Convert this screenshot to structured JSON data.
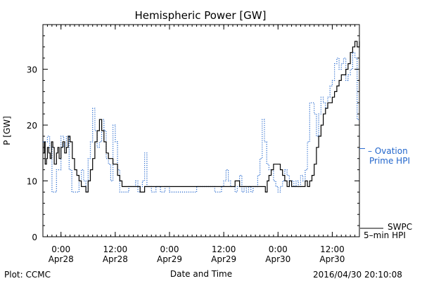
{
  "chart_data": {
    "type": "line",
    "title": "Hemispheric Power [GW]",
    "ylabel": "P [GW]",
    "xlabel": "Date and Time",
    "ylim": [
      0,
      38
    ],
    "xlim_hours": [
      0,
      70
    ],
    "yticks": [
      0,
      10,
      20,
      30
    ],
    "xticks": [
      {
        "x": 4,
        "time": "0:00",
        "date": "Apr28"
      },
      {
        "x": 16,
        "time": "12:00",
        "date": "Apr28"
      },
      {
        "x": 28,
        "time": "0:00",
        "date": "Apr29"
      },
      {
        "x": 40,
        "time": "12:00",
        "date": "Apr29"
      },
      {
        "x": 52,
        "time": "0:00",
        "date": "Apr30"
      },
      {
        "x": 64,
        "time": "12:00",
        "date": "Apr30"
      }
    ],
    "grid": false,
    "series": [
      {
        "name": "SWPC 5-min HPI",
        "legend_lines": [
          "SWPC",
          "5–min HPI"
        ],
        "color": "#000000",
        "style": "solid",
        "x": [
          0,
          0.3,
          0.5,
          0.8,
          1.0,
          1.3,
          1.6,
          1.9,
          2.2,
          2.5,
          3.0,
          3.3,
          3.6,
          4.0,
          4.4,
          4.8,
          5.2,
          5.6,
          6.0,
          6.5,
          7.0,
          7.5,
          8.0,
          8.5,
          9.0,
          9.5,
          10.0,
          10.5,
          11.0,
          11.5,
          12.0,
          12.5,
          13.0,
          13.5,
          14.0,
          14.5,
          15.0,
          15.5,
          16.0,
          16.5,
          17.0,
          17.5,
          18.0,
          18.5,
          19.0,
          19.5,
          20.0,
          20.5,
          21.0,
          21.5,
          22.0,
          22.5,
          23.0,
          23.5,
          24.0,
          26.0,
          28.0,
          30.0,
          32.0,
          34.0,
          36.0,
          38.0,
          40.0,
          42.0,
          42.5,
          43.0,
          43.5,
          44.0,
          46.0,
          48.0,
          49.0,
          49.2,
          49.6,
          50.0,
          50.5,
          51.0,
          51.5,
          52.0,
          52.5,
          53.0,
          53.5,
          54.0,
          54.5,
          55.0,
          55.5,
          56.0,
          56.5,
          57.0,
          57.5,
          58.0,
          58.5,
          59.0,
          59.5,
          60.0,
          60.5,
          61.0,
          61.5,
          62.0,
          62.5,
          63.0,
          63.5,
          64.0,
          64.5,
          65.0,
          65.5,
          66.0,
          66.5,
          67.0,
          67.5,
          68.0,
          68.5,
          69.0,
          69.5,
          70.0
        ],
        "y": [
          15,
          17,
          13,
          14,
          16,
          15,
          14,
          17,
          16,
          13,
          15,
          16,
          14,
          16,
          17,
          15,
          16,
          18,
          17,
          14,
          12,
          11,
          10,
          9,
          9,
          8,
          10,
          12,
          14,
          17,
          19,
          21,
          19,
          17,
          15,
          14,
          14,
          13,
          13,
          11,
          10,
          9,
          9,
          9,
          9,
          9,
          9,
          9,
          9,
          8,
          8,
          9,
          9,
          9,
          9,
          9,
          9,
          9,
          9,
          9,
          9,
          9,
          9,
          9,
          10,
          10,
          9,
          9,
          9,
          9,
          9,
          8,
          10,
          11,
          12,
          13,
          13,
          13,
          12,
          11,
          10,
          9,
          10,
          9,
          9,
          9,
          9,
          9,
          9,
          10,
          9,
          10,
          11,
          13,
          16,
          18,
          20,
          22,
          23,
          24,
          24,
          25,
          26,
          27,
          28,
          29,
          29,
          30,
          31,
          33,
          34,
          35,
          34,
          35
        ]
      },
      {
        "name": "Ovation Prime HPI",
        "legend_lines": [
          "– Ovation",
          "Prime HPI"
        ],
        "color": "#2266cc",
        "style": "dotted",
        "x": [
          0,
          1.0,
          1.5,
          2.0,
          2.5,
          3.0,
          4.0,
          4.6,
          5.2,
          5.8,
          6.4,
          7.0,
          7.5,
          8.0,
          8.5,
          9.0,
          9.5,
          10.0,
          10.5,
          11.0,
          11.5,
          12.0,
          12.5,
          13.0,
          13.5,
          14.0,
          14.5,
          15.0,
          15.5,
          16.0,
          16.5,
          17.0,
          18.0,
          19.0,
          20.0,
          20.5,
          21.0,
          21.5,
          22.0,
          22.5,
          23.0,
          24.0,
          25.0,
          26.0,
          27.0,
          28.0,
          30.0,
          32.0,
          34.0,
          36.0,
          38.0,
          39.5,
          40.0,
          40.5,
          41.0,
          41.5,
          42.0,
          42.5,
          43.0,
          43.5,
          44.0,
          44.5,
          45.0,
          45.5,
          46.0,
          46.5,
          47.0,
          47.5,
          48.0,
          48.5,
          49.0,
          49.5,
          50.0,
          50.5,
          51.0,
          51.5,
          52.0,
          52.5,
          53.0,
          53.5,
          54.0,
          54.5,
          55.0,
          55.5,
          56.0,
          56.5,
          57.0,
          57.5,
          58.0,
          58.5,
          59.0,
          59.5,
          60.0,
          60.5,
          61.0,
          61.5,
          62.0,
          62.5,
          63.0,
          63.5,
          64.0,
          64.5,
          65.0,
          65.5,
          66.0,
          66.5,
          67.0,
          67.5,
          68.0,
          68.5,
          69.0,
          69.5,
          70.0
        ],
        "y": [
          17,
          18,
          16,
          8,
          8,
          12,
          18,
          16,
          18,
          12,
          8,
          8,
          8,
          10,
          12,
          10,
          8,
          14,
          17,
          23,
          19,
          16,
          17,
          21,
          19,
          14,
          13,
          10,
          20,
          17,
          12,
          8,
          8,
          9,
          9,
          10,
          8,
          9,
          10,
          15,
          9,
          8,
          9,
          8,
          9,
          8,
          8,
          8,
          9,
          9,
          8,
          9,
          10,
          12,
          10,
          9,
          9,
          8,
          9,
          11,
          8,
          9,
          8,
          9,
          8,
          9,
          9,
          11,
          14,
          21,
          17,
          13,
          12,
          12,
          10,
          9,
          8,
          9,
          10,
          12,
          11,
          9,
          10,
          9,
          10,
          9,
          11,
          10,
          12,
          17,
          24,
          24,
          22,
          18,
          22,
          25,
          24,
          23,
          25,
          27,
          28,
          31,
          32,
          30,
          31,
          32,
          28,
          29,
          30,
          33,
          32,
          21,
          21
        ]
      }
    ]
  },
  "footer": {
    "plot_credit": "Plot: CCMC",
    "timestamp": "2016/04/30 20:10:08"
  }
}
